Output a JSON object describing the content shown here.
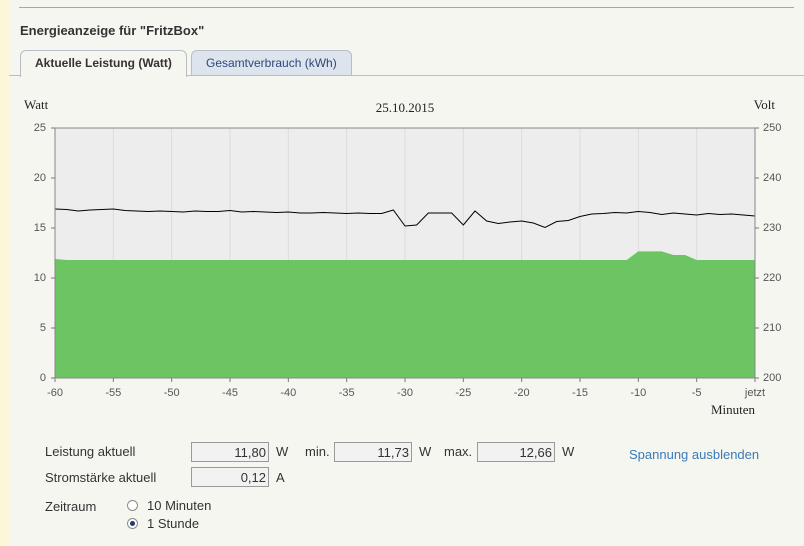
{
  "header": {
    "title": "Energieanzeige für \"FritzBox\""
  },
  "tabs": [
    "Aktuelle Leistung (Watt)",
    "Gesamtverbrauch (kWh)"
  ],
  "chart_data": {
    "type": "area",
    "title": "25.10.2015",
    "y_label": "Watt",
    "y2_label": "Volt",
    "x_label": "Minuten",
    "x": [
      -60,
      -59,
      -58,
      -57,
      -56,
      -55,
      -54,
      -53,
      -52,
      -51,
      -50,
      -49,
      -48,
      -47,
      -46,
      -45,
      -44,
      -43,
      -42,
      -41,
      -40,
      -39,
      -38,
      -37,
      -36,
      -35,
      -34,
      -33,
      -32,
      -31,
      -30,
      -29,
      -28,
      -27,
      -26,
      -25,
      -24,
      -23,
      -22,
      -21,
      -20,
      -19,
      -18,
      -17,
      -16,
      -15,
      -14,
      -13,
      -12,
      -11,
      -10,
      -9,
      -8,
      -7,
      -6,
      -5,
      -4,
      -3,
      -2,
      -1,
      0
    ],
    "xlim": [
      -60,
      0
    ],
    "xticks": [
      -60,
      -55,
      -50,
      -45,
      -40,
      -35,
      -30,
      -25,
      -20,
      -15,
      -10,
      -5,
      {
        "value": 0,
        "label": "jetzt"
      }
    ],
    "ylim": [
      0,
      25
    ],
    "yticks": [
      0,
      5,
      10,
      15,
      20,
      25
    ],
    "y2lim": [
      200,
      250
    ],
    "y2ticks": [
      200,
      210,
      220,
      230,
      240,
      250
    ],
    "grid": true,
    "series": [
      {
        "type": "area",
        "color": "#6cc462",
        "values": [
          11.9,
          11.8,
          11.8,
          11.8,
          11.8,
          11.8,
          11.8,
          11.8,
          11.8,
          11.8,
          11.8,
          11.8,
          11.8,
          11.8,
          11.8,
          11.8,
          11.8,
          11.8,
          11.8,
          11.8,
          11.8,
          11.8,
          11.8,
          11.8,
          11.8,
          11.8,
          11.8,
          11.8,
          11.8,
          11.8,
          11.8,
          11.8,
          11.8,
          11.8,
          11.8,
          11.8,
          11.8,
          11.8,
          11.8,
          11.8,
          11.8,
          11.8,
          11.8,
          11.8,
          11.8,
          11.8,
          11.8,
          11.8,
          11.8,
          11.8,
          12.66,
          12.66,
          12.66,
          12.3,
          12.3,
          11.8,
          11.8,
          11.8,
          11.8,
          11.8,
          11.8
        ]
      },
      {
        "type": "line",
        "axis": "y2",
        "color": "#000000",
        "values": [
          233.8,
          233.7,
          233.4,
          233.6,
          233.7,
          233.8,
          233.5,
          233.4,
          233.3,
          233.4,
          233.3,
          233.2,
          233.4,
          233.3,
          233.3,
          233.5,
          233.2,
          233.3,
          233.2,
          233.1,
          233.2,
          233.0,
          233.0,
          233.1,
          233.0,
          232.9,
          233.0,
          232.9,
          232.9,
          233.6,
          230.4,
          230.6,
          233.0,
          233.0,
          233.0,
          230.6,
          233.4,
          231.4,
          230.9,
          231.2,
          231.4,
          231.0,
          230.1,
          231.3,
          231.5,
          232.3,
          232.8,
          232.9,
          233.1,
          233.0,
          233.3,
          233.1,
          232.7,
          233.0,
          232.8,
          232.6,
          232.9,
          232.7,
          232.8,
          232.6,
          232.4
        ]
      }
    ]
  },
  "readings": {
    "power": {
      "label": "Leistung aktuell",
      "value": "11,80",
      "unit": "W"
    },
    "min": {
      "label": "min.",
      "value": "11,73",
      "unit": "W"
    },
    "max": {
      "label": "max.",
      "value": "12,66",
      "unit": "W"
    },
    "current": {
      "label": "Stromstärke aktuell",
      "value": "0,12",
      "unit": "A"
    }
  },
  "link": "Spannung ausblenden",
  "timespan": {
    "label": "Zeitraum",
    "options": [
      {
        "label": "10 Minuten",
        "selected": false
      },
      {
        "label": "1 Stunde",
        "selected": true
      }
    ]
  }
}
